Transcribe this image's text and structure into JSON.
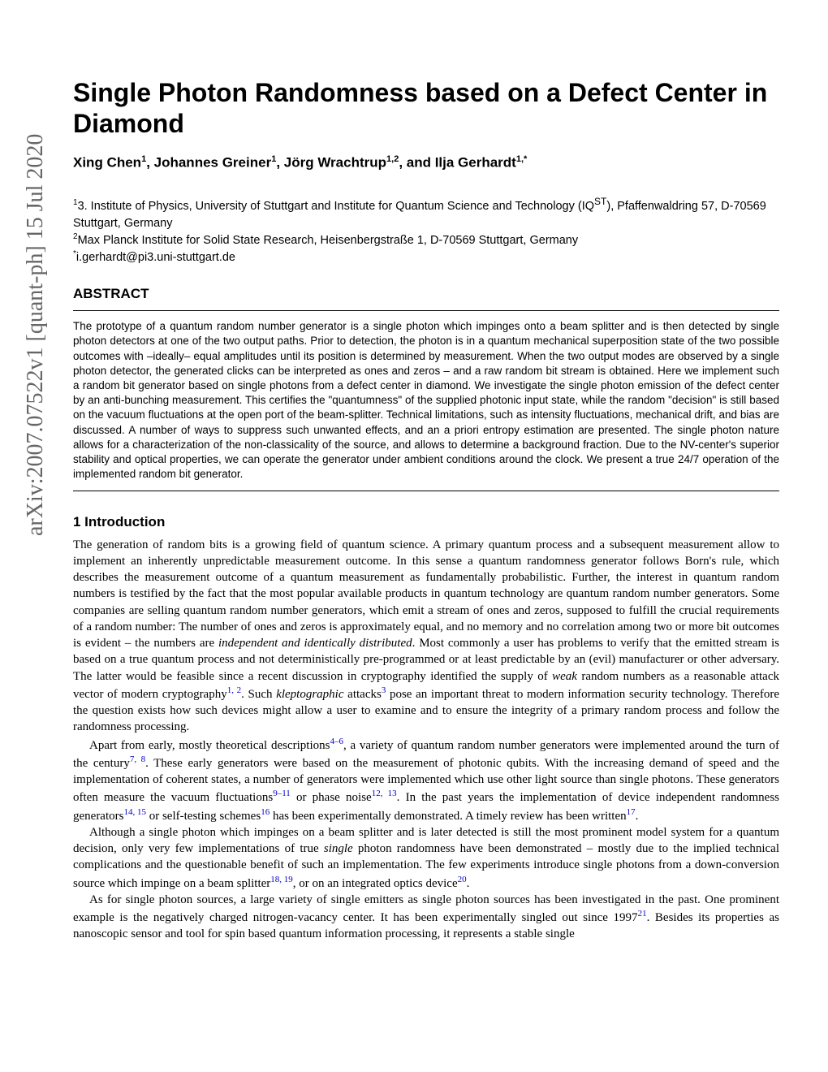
{
  "arxiv": "arXiv:2007.07522v1  [quant-ph]  15 Jul 2020",
  "title": "Single Photon Randomness based on a Defect Center in Diamond",
  "authors_html": "Xing Chen<sup>1</sup>, Johannes Greiner<sup>1</sup>, Jörg Wrachtrup<sup>1,2</sup>, and Ilja Gerhardt<sup>1,*</sup>",
  "affil1_html": "<sup>1</sup>3. Institute of Physics, University of Stuttgart and Institute for Quantum Science and Technology (IQ<sup class=\"iqst\">ST</sup>), Pfaffenwaldring 57, D-70569 Stuttgart, Germany",
  "affil2_html": "<sup>2</sup>Max Planck Institute for Solid State Research, Heisenbergstraße 1, D-70569 Stuttgart, Germany",
  "affil3_html": "<sup>*</sup>i.gerhardt@pi3.uni-stuttgart.de",
  "abstract_label": "ABSTRACT",
  "abstract_text": "The prototype of a quantum random number generator is a single photon which impinges onto a beam splitter and is then detected by single photon detectors at one of the two output paths. Prior to detection, the photon is in a quantum mechanical superposition state of the two possible outcomes with –ideally– equal amplitudes until its position is determined by measurement. When the two output modes are observed by a single photon detector, the generated clicks can be interpreted as ones and zeros – and a raw random bit stream is obtained. Here we implement such a random bit generator based on single photons from a defect center in diamond. We investigate the single photon emission of the defect center by an anti-bunching measurement. This certifies the \"quantumness\" of the supplied photonic input state, while the random \"decision\" is still based on the vacuum fluctuations at the open port of the beam-splitter. Technical limitations, such as intensity fluctuations, mechanical drift, and bias are discussed. A number of ways to suppress such unwanted effects, and an a priori entropy estimation are presented. The single photon nature allows for a characterization of the non-classicality of the source, and allows to determine a background fraction. Due to the NV-center's superior stability and optical properties, we can operate the generator under ambient conditions around the clock. We present a true 24/7 operation of the implemented random bit generator.",
  "section1_header": "1  Introduction",
  "para1_html": "The generation of random bits is a growing field of quantum science. A primary quantum process and a subsequent measurement allow to implement an inherently unpredictable measurement outcome. In this sense a quantum randomness generator follows Born's rule, which describes the measurement outcome of a quantum measurement as fundamentally probabilistic. Further, the interest in quantum random numbers is testified by the fact that the most popular available products in quantum technology are quantum random number generators. Some companies are selling quantum random number generators, which emit a stream of ones and zeros, supposed to fulfill the crucial requirements of a random number: The number of ones and zeros is approximately equal, and no memory and no correlation among two or more bit outcomes is evident – the numbers are <span class=\"italic\">independent and identically distributed</span>. Most commonly a user has problems to verify that the emitted stream is based on a true quantum process and not deterministically pre-programmed or at least predictable by an (evil) manufacturer or other adversary. The latter would be feasible since a recent discussion in cryptography identified the supply of <span class=\"italic\">weak</span> random numbers as a reasonable attack vector of modern cryptography<span class=\"cite\">1, 2</span>. Such <span class=\"italic\">kleptographic</span> attacks<span class=\"cite\">3</span> pose an important threat to modern information security technology. Therefore the question exists how such devices might allow a user to examine and to ensure the integrity of a primary random process and follow the randomness processing.",
  "para2_html": "Apart from early, mostly theoretical descriptions<span class=\"cite\">4–6</span>, a variety of quantum random number generators were implemented around the turn of the century<span class=\"cite\">7, 8</span>. These early generators were based on the measurement of photonic qubits. With the increasing demand of speed and the implementation of coherent states, a number of generators were implemented which use other light source than single photons. These generators often measure the vacuum fluctuations<span class=\"cite\">9–11</span> or phase noise<span class=\"cite\">12, 13</span>. In the past years the implementation of device independent randomness generators<span class=\"cite\">14, 15</span> or self-testing schemes<span class=\"cite\">16</span> has been experimentally demonstrated. A timely review has been written<span class=\"cite\">17</span>.",
  "para3_html": "Although a single photon which impinges on a beam splitter and is later detected is still the most prominent model system for a quantum decision, only very few implementations of true <span class=\"italic\">single</span> photon randomness have been demonstrated – mostly due to the implied technical complications and the questionable benefit of such an implementation. The few experiments introduce single photons from a down-conversion source which impinge on a beam splitter<span class=\"cite\">18, 19</span>, or on an integrated optics device<span class=\"cite\">20</span>.",
  "para4_html": "As for single photon sources, a large variety of single emitters as single photon sources has been investigated in the past. One prominent example is the negatively charged nitrogen-vacancy center. It has been experimentally singled out since 1997<span class=\"cite\">21</span>. Besides its properties as nanoscopic sensor and tool for spin based quantum information processing, it represents a stable single"
}
